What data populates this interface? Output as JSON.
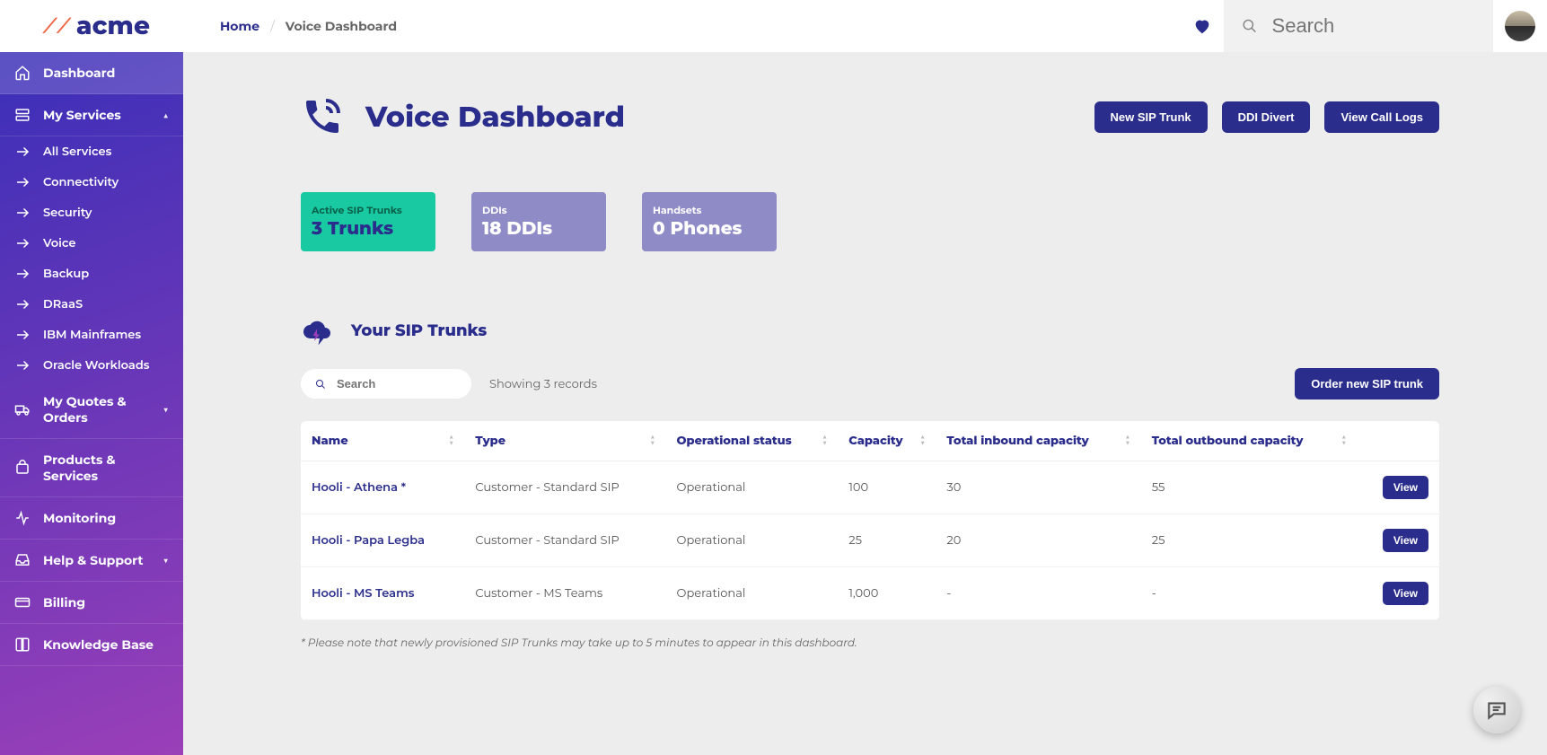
{
  "brand": {
    "name": "acme"
  },
  "breadcrumb": {
    "home": "Home",
    "current": "Voice Dashboard"
  },
  "search": {
    "placeholder": "Search"
  },
  "sidebar": {
    "dashboard": "Dashboard",
    "myServices": "My Services",
    "services": [
      "All Services",
      "Connectivity",
      "Security",
      "Voice",
      "Backup",
      "DRaaS",
      "IBM Mainframes",
      "Oracle Workloads"
    ],
    "quotes": "My Quotes & Orders",
    "products": "Products & Services",
    "monitoring": "Monitoring",
    "help": "Help & Support",
    "billing": "Billing",
    "knowledge": "Knowledge Base"
  },
  "page": {
    "title": "Voice Dashboard",
    "buttons": {
      "newTrunk": "New SIP Trunk",
      "ddiDivert": "DDI Divert",
      "callLogs": "View Call Logs"
    }
  },
  "stats": [
    {
      "label": "Active SIP Trunks",
      "value": "3 Trunks",
      "color": "teal"
    },
    {
      "label": "DDIs",
      "value": "18 DDIs",
      "color": "lav"
    },
    {
      "label": "Handsets",
      "value": "0 Phones",
      "color": "lav"
    }
  ],
  "section": {
    "title": "Your SIP Trunks",
    "searchPlaceholder": "Search",
    "showing": "Showing 3 records",
    "orderBtn": "Order new SIP trunk",
    "footnote": "* Please note that newly provisioned SIP Trunks may take up to 5 minutes to appear in this dashboard."
  },
  "table": {
    "cols": [
      "Name",
      "Type",
      "Operational status",
      "Capacity",
      "Total inbound capacity",
      "Total outbound capacity",
      ""
    ],
    "rows": [
      {
        "name": "Hooli - Athena *",
        "type": "Customer - Standard SIP",
        "status": "Operational",
        "cap": "100",
        "inbound": "30",
        "outbound": "55",
        "view": "View"
      },
      {
        "name": "Hooli - Papa Legba",
        "type": "Customer - Standard SIP",
        "status": "Operational",
        "cap": "25",
        "inbound": "20",
        "outbound": "25",
        "view": "View"
      },
      {
        "name": "Hooli - MS Teams",
        "type": "Customer - MS Teams",
        "status": "Operational",
        "cap": "1,000",
        "inbound": "-",
        "outbound": "-",
        "view": "View"
      }
    ]
  }
}
